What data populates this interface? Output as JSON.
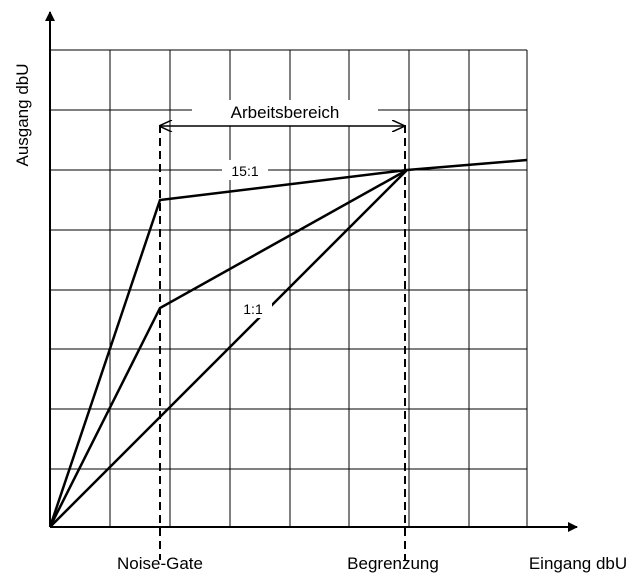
{
  "y_axis_label": "Ausgang dbU",
  "x_axis_label": "Eingang dbU",
  "range_label": "Arbeitsbereich",
  "markers": [
    "Noise-Gate",
    "Begrenzung"
  ],
  "curve_labels": [
    "15:1",
    "1:1"
  ]
}
